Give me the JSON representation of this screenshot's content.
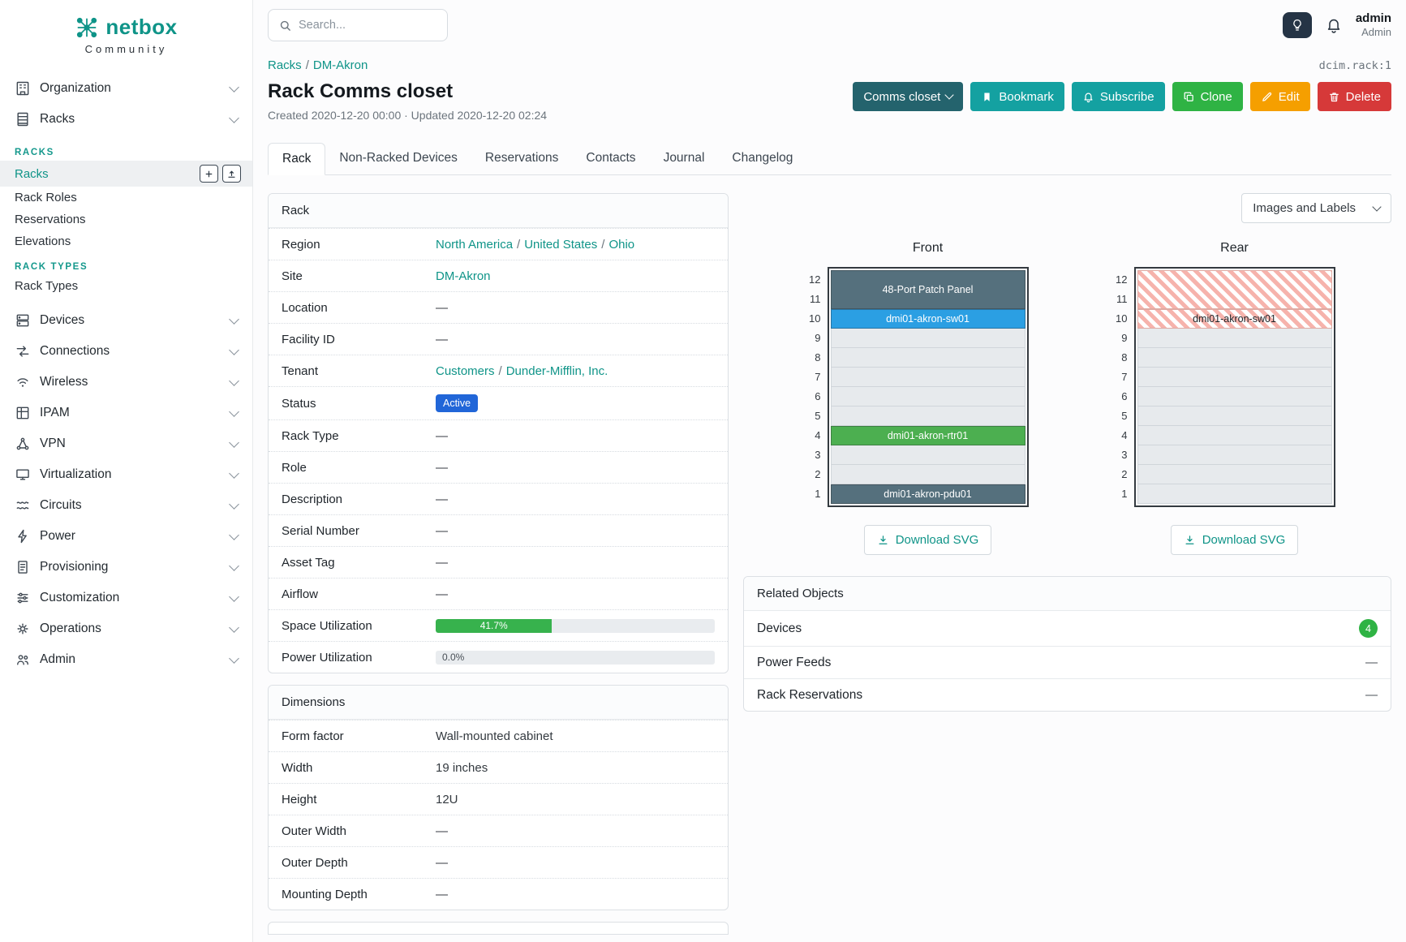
{
  "brand": {
    "name": "netbox",
    "subtitle": "Community"
  },
  "topbar": {
    "search_placeholder": "Search...",
    "user": {
      "name": "admin",
      "role": "Admin"
    }
  },
  "sidebar": {
    "items": [
      {
        "label": "Organization"
      },
      {
        "label": "Racks"
      },
      {
        "label": "Devices"
      },
      {
        "label": "Connections"
      },
      {
        "label": "Wireless"
      },
      {
        "label": "IPAM"
      },
      {
        "label": "VPN"
      },
      {
        "label": "Virtualization"
      },
      {
        "label": "Circuits"
      },
      {
        "label": "Power"
      },
      {
        "label": "Provisioning"
      },
      {
        "label": "Customization"
      },
      {
        "label": "Operations"
      },
      {
        "label": "Admin"
      }
    ],
    "racks_menu": {
      "groups": [
        {
          "header": "RACKS",
          "items": [
            "Racks",
            "Rack Roles",
            "Reservations",
            "Elevations"
          ]
        },
        {
          "header": "RACK TYPES",
          "items": [
            "Rack Types"
          ]
        }
      ]
    }
  },
  "page": {
    "breadcrumb": [
      "Racks",
      "DM-Akron"
    ],
    "object_id": "dcim.rack:1",
    "title": "Rack Comms closet",
    "meta": "Created 2020-12-20 00:00 · Updated 2020-12-20 02:24",
    "actions": {
      "view_select": "Comms closet",
      "bookmark": "Bookmark",
      "subscribe": "Subscribe",
      "clone": "Clone",
      "edit": "Edit",
      "delete": "Delete"
    },
    "tabs": [
      "Rack",
      "Non-Racked Devices",
      "Reservations",
      "Contacts",
      "Journal",
      "Changelog"
    ]
  },
  "rack_panel": {
    "title": "Rack",
    "rows": {
      "region": {
        "label": "Region",
        "links": [
          "North America",
          "United States",
          "Ohio"
        ]
      },
      "site": {
        "label": "Site",
        "link": "DM-Akron"
      },
      "location": {
        "label": "Location",
        "value": "—"
      },
      "facility_id": {
        "label": "Facility ID",
        "value": "—"
      },
      "tenant": {
        "label": "Tenant",
        "links": [
          "Customers",
          "Dunder-Mifflin, Inc."
        ]
      },
      "status": {
        "label": "Status",
        "badge": "Active"
      },
      "rack_type": {
        "label": "Rack Type",
        "value": "—"
      },
      "role": {
        "label": "Role",
        "value": "—"
      },
      "description": {
        "label": "Description",
        "value": "—"
      },
      "serial": {
        "label": "Serial Number",
        "value": "—"
      },
      "asset_tag": {
        "label": "Asset Tag",
        "value": "—"
      },
      "airflow": {
        "label": "Airflow",
        "value": "—"
      },
      "space": {
        "label": "Space Utilization",
        "percent": 41.7,
        "text": "41.7%"
      },
      "power": {
        "label": "Power Utilization",
        "percent": 0.0,
        "text": "0.0%"
      }
    }
  },
  "dimensions_panel": {
    "title": "Dimensions",
    "rows": [
      {
        "label": "Form factor",
        "value": "Wall-mounted cabinet"
      },
      {
        "label": "Width",
        "value": "19 inches"
      },
      {
        "label": "Height",
        "value": "12U"
      },
      {
        "label": "Outer Width",
        "value": "—"
      },
      {
        "label": "Outer Depth",
        "value": "—"
      },
      {
        "label": "Mounting Depth",
        "value": "—"
      }
    ]
  },
  "elevation": {
    "toggle_label": "Images and Labels",
    "download_label": "Download SVG",
    "units": [
      12,
      11,
      10,
      9,
      8,
      7,
      6,
      5,
      4,
      3,
      2,
      1
    ],
    "front": {
      "title": "Front",
      "devices": [
        {
          "name": "48-Port Patch Panel",
          "top_unit": 12,
          "span": 2,
          "color": "#55707d"
        },
        {
          "name": "dmi01-akron-sw01",
          "top_unit": 10,
          "span": 1,
          "color": "#2b9fe3"
        },
        {
          "name": "dmi01-akron-rtr01",
          "top_unit": 4,
          "span": 1,
          "color": "#4caf50"
        },
        {
          "name": "dmi01-akron-pdu01",
          "top_unit": 1,
          "span": 1,
          "color": "#55707d"
        }
      ]
    },
    "rear": {
      "title": "Rear",
      "blocks": [
        {
          "name": "",
          "top_unit": 12,
          "span": 2
        },
        {
          "name": "dmi01-akron-sw01",
          "top_unit": 10,
          "span": 1
        }
      ]
    }
  },
  "related_panel": {
    "title": "Related Objects",
    "rows": [
      {
        "label": "Devices",
        "badge": "4"
      },
      {
        "label": "Power Feeds",
        "value": "—"
      },
      {
        "label": "Rack Reservations",
        "value": "—"
      }
    ]
  },
  "colors": {
    "accent_teal": "#0f9488",
    "status_active_blue": "#2166d8",
    "utilization_green": "#37b24d",
    "count_badge_green": "#2fb344",
    "device_dark": "#55707d",
    "device_blue": "#2b9fe3",
    "device_green": "#4caf50"
  }
}
